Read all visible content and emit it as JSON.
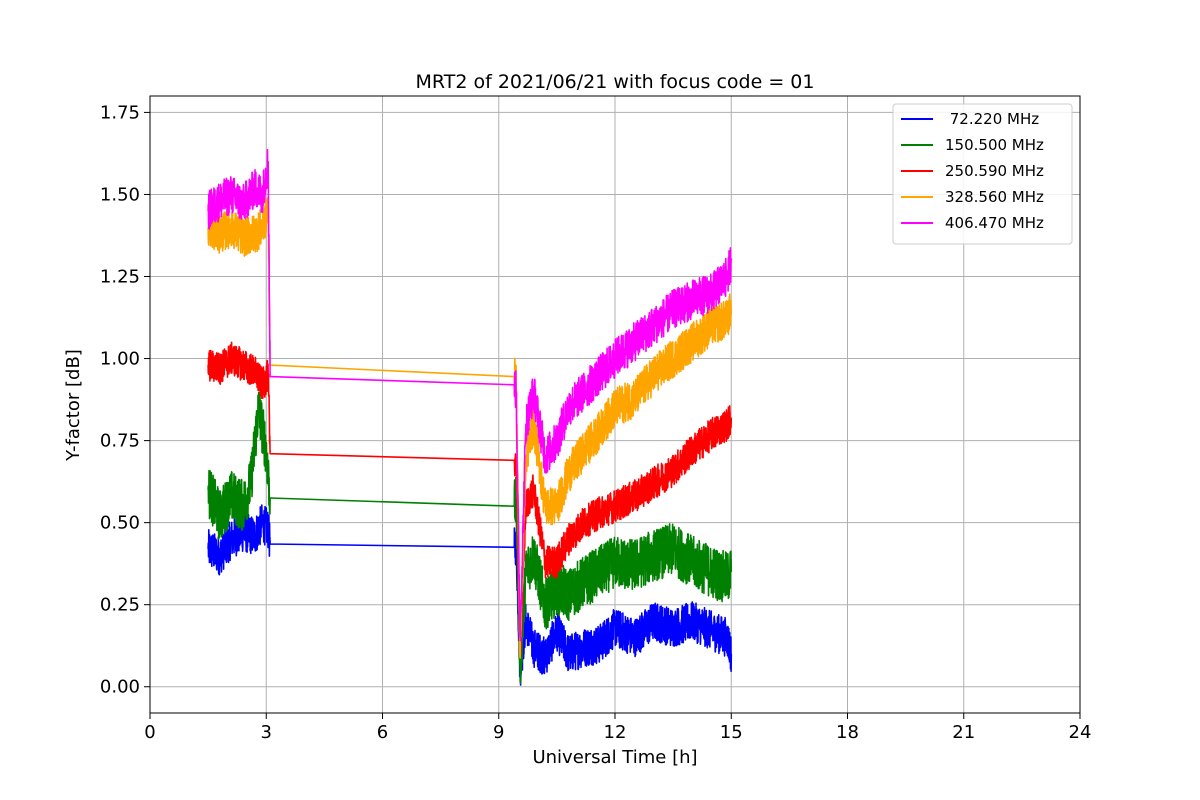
{
  "chart_data": {
    "type": "line",
    "title": "MRT2 of 2021/06/21 with focus code = 01",
    "xlabel": "Universal Time [h]",
    "ylabel": "Y-factor [dB]",
    "xlim": [
      0,
      24
    ],
    "ylim": [
      -0.08,
      1.8
    ],
    "xticks": [
      0,
      3,
      6,
      9,
      12,
      15,
      18,
      21,
      24
    ],
    "xtick_labels": [
      "0",
      "3",
      "6",
      "9",
      "12",
      "15",
      "18",
      "21",
      "24"
    ],
    "yticks": [
      0.0,
      0.25,
      0.5,
      0.75,
      1.0,
      1.25,
      1.5,
      1.75
    ],
    "ytick_labels": [
      "0.00",
      "0.25",
      "0.50",
      "0.75",
      "1.00",
      "1.25",
      "1.50",
      "1.75"
    ],
    "grid": true,
    "legend_position": "top-right",
    "series": [
      {
        "name": " 72.220 MHz",
        "color": "#0000ff",
        "x": [
          1.5,
          1.8,
          2.1,
          2.4,
          2.7,
          2.9,
          3.05,
          3.1,
          9.4,
          9.45,
          9.55,
          9.7,
          9.9,
          10.2,
          10.5,
          10.8,
          11.2,
          11.6,
          12.0,
          12.5,
          13.0,
          13.5,
          14.0,
          14.5,
          14.9,
          15.0
        ],
        "y": [
          0.42,
          0.4,
          0.45,
          0.47,
          0.46,
          0.5,
          0.48,
          0.435,
          0.425,
          0.43,
          0.05,
          0.2,
          0.12,
          0.09,
          0.17,
          0.1,
          0.12,
          0.13,
          0.18,
          0.15,
          0.2,
          0.18,
          0.2,
          0.17,
          0.15,
          0.1
        ],
        "noise": 0.06
      },
      {
        "name": "150.500 MHz",
        "color": "#008000",
        "x": [
          1.5,
          1.8,
          2.1,
          2.4,
          2.6,
          2.8,
          3.0,
          3.1,
          9.4,
          9.45,
          9.55,
          9.7,
          9.9,
          10.2,
          10.5,
          10.8,
          11.2,
          11.6,
          12.0,
          12.5,
          13.0,
          13.5,
          14.0,
          14.5,
          14.9,
          15.0
        ],
        "y": [
          0.6,
          0.52,
          0.58,
          0.55,
          0.62,
          0.85,
          0.72,
          0.575,
          0.55,
          0.56,
          0.05,
          0.35,
          0.4,
          0.25,
          0.3,
          0.28,
          0.32,
          0.35,
          0.38,
          0.37,
          0.4,
          0.42,
          0.38,
          0.35,
          0.33,
          0.35
        ],
        "noise": 0.08
      },
      {
        "name": "250.590 MHz",
        "color": "#ff0000",
        "x": [
          1.5,
          1.8,
          2.1,
          2.4,
          2.7,
          2.9,
          3.05,
          3.1,
          9.4,
          9.45,
          9.55,
          9.7,
          9.9,
          10.2,
          10.5,
          10.8,
          11.2,
          11.6,
          12.0,
          12.5,
          13.0,
          13.5,
          14.0,
          14.5,
          14.9,
          15.0
        ],
        "y": [
          0.98,
          0.97,
          1.0,
          0.98,
          0.96,
          0.92,
          0.95,
          0.71,
          0.69,
          0.7,
          0.1,
          0.55,
          0.6,
          0.38,
          0.38,
          0.45,
          0.5,
          0.53,
          0.55,
          0.58,
          0.62,
          0.66,
          0.72,
          0.77,
          0.8,
          0.82
        ],
        "noise": 0.05
      },
      {
        "name": "328.560 MHz",
        "color": "#ffa500",
        "x": [
          1.5,
          1.8,
          2.1,
          2.4,
          2.7,
          2.9,
          3.05,
          3.1,
          9.4,
          9.45,
          9.55,
          9.7,
          9.9,
          10.2,
          10.5,
          10.8,
          11.2,
          11.6,
          12.0,
          12.5,
          13.0,
          13.5,
          14.0,
          14.5,
          14.9,
          15.0
        ],
        "y": [
          1.4,
          1.38,
          1.4,
          1.37,
          1.38,
          1.4,
          1.45,
          0.98,
          0.945,
          0.93,
          0.1,
          0.7,
          0.8,
          0.55,
          0.55,
          0.65,
          0.72,
          0.78,
          0.85,
          0.88,
          0.95,
          1.0,
          1.05,
          1.1,
          1.12,
          1.15
        ],
        "noise": 0.06
      },
      {
        "name": "406.470 MHz",
        "color": "#ff00ff",
        "x": [
          1.5,
          1.8,
          2.1,
          2.4,
          2.7,
          2.9,
          3.05,
          3.1,
          9.4,
          9.45,
          9.55,
          9.7,
          9.9,
          10.2,
          10.5,
          10.8,
          11.2,
          11.6,
          12.0,
          12.5,
          13.0,
          13.5,
          14.0,
          14.5,
          14.9,
          15.0
        ],
        "y": [
          1.45,
          1.48,
          1.5,
          1.47,
          1.52,
          1.5,
          1.6,
          0.945,
          0.92,
          0.9,
          0.15,
          0.8,
          0.9,
          0.7,
          0.75,
          0.85,
          0.9,
          0.95,
          1.0,
          1.05,
          1.1,
          1.15,
          1.18,
          1.2,
          1.25,
          1.3
        ],
        "noise": 0.06
      }
    ]
  }
}
